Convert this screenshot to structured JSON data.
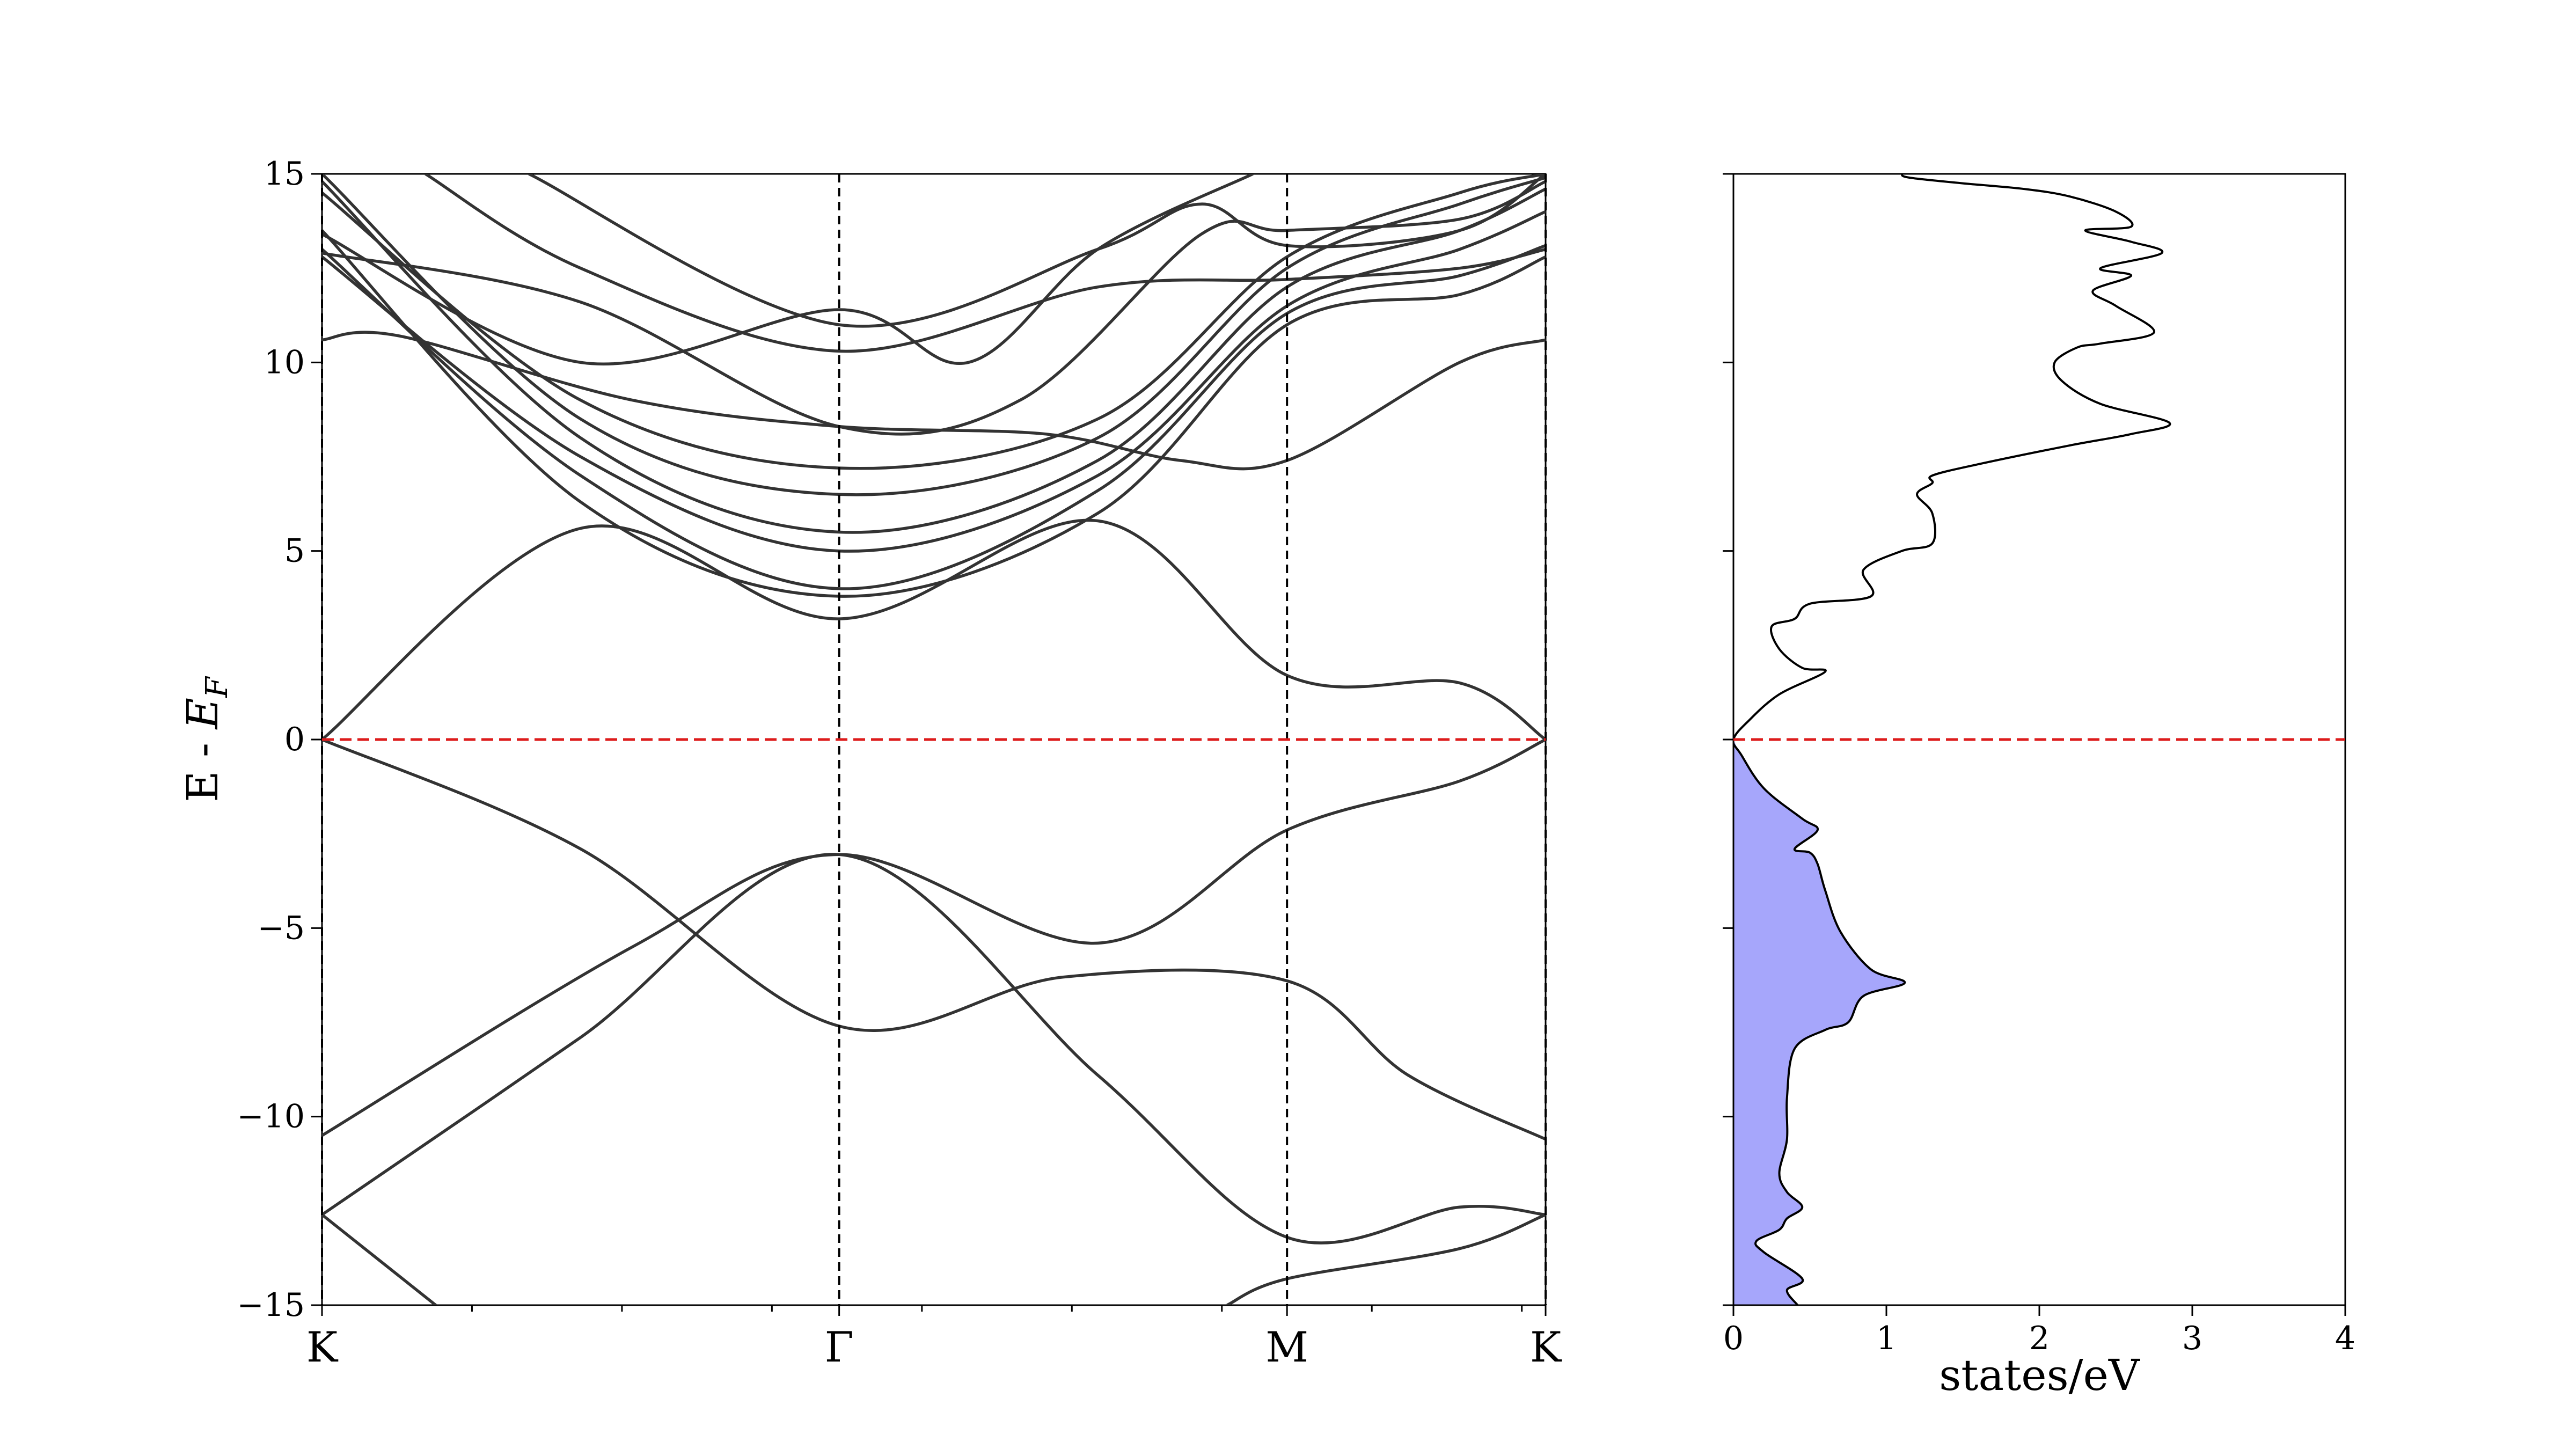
{
  "chart_data": [
    {
      "type": "line",
      "subtype": "band-structure",
      "title": "",
      "ylabel": "E - E_F",
      "ylabel_prefix": "E - ",
      "ylabel_symbol": "E",
      "ylabel_subscript": "F",
      "ylim": [
        -15,
        15
      ],
      "yticks": [
        15,
        10,
        5,
        0,
        -5,
        -10,
        -15
      ],
      "ytick_labels": [
        "15",
        "10",
        "5",
        "0",
        "−5",
        "−10",
        "−15"
      ],
      "kpath": [
        {
          "label": "K",
          "x": 0.0
        },
        {
          "label": "Γ",
          "x": 1.0
        },
        {
          "label": "M",
          "x": 1.866
        },
        {
          "label": "K",
          "x": 2.366
        }
      ],
      "xlim": [
        0.0,
        2.366
      ],
      "fermi_level": 0,
      "grid": false,
      "band_color": "#333333",
      "fermi_color": "#dd1c1c",
      "series": [
        {
          "points": [
            [
              0,
              0
            ],
            [
              0.5,
              -2.9
            ],
            [
              1.0,
              -7.6
            ],
            [
              1.433,
              -6.3
            ],
            [
              1.866,
              -6.4
            ],
            [
              2.1,
              -8.9
            ],
            [
              2.366,
              -10.6
            ]
          ]
        },
        {
          "points": [
            [
              0,
              -10.5
            ],
            [
              0.6,
              -5.5
            ],
            [
              1.0,
              -3.05
            ],
            [
              1.5,
              -5.4
            ],
            [
              1.866,
              -2.4
            ],
            [
              2.2,
              -1.1
            ],
            [
              2.366,
              0
            ]
          ]
        },
        {
          "points": [
            [
              0,
              -12.6
            ],
            [
              0.5,
              -7.9
            ],
            [
              1.0,
              -3.05
            ],
            [
              1.5,
              -8.9
            ],
            [
              1.866,
              -13.2
            ],
            [
              2.2,
              -12.4
            ],
            [
              2.366,
              -12.6
            ]
          ]
        },
        {
          "points": [
            [
              0,
              -12.6
            ],
            [
              0.22,
              -15
            ]
          ]
        },
        {
          "points": [
            [
              1.75,
              -15
            ],
            [
              1.866,
              -14.3
            ],
            [
              2.2,
              -13.5
            ],
            [
              2.366,
              -12.6
            ]
          ]
        },
        {
          "points": [
            [
              0,
              0
            ],
            [
              0.5,
              5.6
            ],
            [
              1.0,
              3.2
            ],
            [
              1.5,
              5.8
            ],
            [
              1.866,
              1.7
            ],
            [
              2.2,
              1.5
            ],
            [
              2.366,
              0
            ]
          ]
        },
        {
          "points": [
            [
              0,
              13.5
            ],
            [
              0.5,
              6.3
            ],
            [
              1.0,
              3.8
            ],
            [
              1.5,
              6.0
            ],
            [
              1.866,
              11.0
            ],
            [
              2.2,
              11.8
            ],
            [
              2.366,
              12.8
            ]
          ]
        },
        {
          "points": [
            [
              0,
              13.0
            ],
            [
              0.5,
              7.0
            ],
            [
              1.0,
              4.0
            ],
            [
              1.5,
              6.6
            ],
            [
              1.866,
              11.3
            ],
            [
              2.2,
              12.3
            ],
            [
              2.366,
              13.1
            ]
          ]
        },
        {
          "points": [
            [
              0,
              12.8
            ],
            [
              0.5,
              7.5
            ],
            [
              1.0,
              5.0
            ],
            [
              1.5,
              7.0
            ],
            [
              1.866,
              11.5
            ],
            [
              2.2,
              13.0
            ],
            [
              2.366,
              14.0
            ]
          ]
        },
        {
          "points": [
            [
              0,
              14.8
            ],
            [
              0.5,
              8.0
            ],
            [
              1.0,
              5.5
            ],
            [
              1.5,
              7.4
            ],
            [
              1.866,
              12.0
            ],
            [
              2.2,
              13.5
            ],
            [
              2.366,
              14.6
            ]
          ]
        },
        {
          "points": [
            [
              0,
              15.0
            ],
            [
              0.5,
              8.5
            ],
            [
              1.0,
              6.5
            ],
            [
              1.5,
              8.0
            ],
            [
              1.866,
              12.5
            ],
            [
              2.2,
              14.2
            ],
            [
              2.366,
              14.9
            ]
          ]
        },
        {
          "points": [
            [
              0,
              14.5
            ],
            [
              0.5,
              9.0
            ],
            [
              1.0,
              7.2
            ],
            [
              1.5,
              8.5
            ],
            [
              1.866,
              12.8
            ],
            [
              2.2,
              14.5
            ],
            [
              2.366,
              15.0
            ]
          ]
        },
        {
          "points": [
            [
              0,
              10.6
            ],
            [
              0.15,
              10.7
            ],
            [
              0.6,
              9.0
            ],
            [
              1.0,
              8.3
            ],
            [
              1.4,
              8.1
            ],
            [
              1.66,
              7.4
            ],
            [
              1.866,
              7.4
            ],
            [
              2.2,
              10.0
            ],
            [
              2.366,
              10.6
            ]
          ]
        },
        {
          "points": [
            [
              0,
              12.9
            ],
            [
              0.5,
              11.6
            ],
            [
              1.0,
              8.3
            ],
            [
              1.35,
              9.0
            ],
            [
              1.7,
              13.4
            ],
            [
              1.866,
              13.5
            ],
            [
              2.2,
              13.8
            ],
            [
              2.366,
              14.8
            ]
          ]
        },
        {
          "points": [
            [
              0,
              13.4
            ],
            [
              0.5,
              10.0
            ],
            [
              1.0,
              11.4
            ],
            [
              1.25,
              10.0
            ],
            [
              1.5,
              13.0
            ],
            [
              1.8,
              15.0
            ]
          ]
        },
        {
          "points": [
            [
              0.4,
              15
            ],
            [
              1.0,
              11.0
            ],
            [
              1.5,
              13.0
            ],
            [
              1.7,
              14.2
            ],
            [
              1.866,
              13.1
            ],
            [
              2.2,
              13.5
            ],
            [
              2.366,
              15.0
            ]
          ]
        },
        {
          "points": [
            [
              0.2,
              15
            ],
            [
              0.5,
              12.5
            ],
            [
              1.0,
              10.3
            ],
            [
              1.5,
              12.0
            ],
            [
              1.866,
              12.2
            ],
            [
              2.2,
              12.5
            ],
            [
              2.366,
              13.0
            ]
          ]
        }
      ]
    },
    {
      "type": "area",
      "subtype": "density-of-states",
      "title": "",
      "xlabel": "states/eV",
      "xlim": [
        0,
        4
      ],
      "xticks": [
        0,
        1,
        2,
        3,
        4
      ],
      "xtick_labels": [
        "0",
        "1",
        "2",
        "3",
        "4"
      ],
      "ylim": [
        -15,
        15
      ],
      "fermi_level": 0,
      "grid": false,
      "line_color": "#000000",
      "fill_color": "#a6a6fb",
      "fill_below_fermi": true,
      "points": [
        [
          0.42,
          -15
        ],
        [
          0.35,
          -14.6
        ],
        [
          0.45,
          -14.3
        ],
        [
          0.2,
          -13.6
        ],
        [
          0.15,
          -13.3
        ],
        [
          0.3,
          -13.0
        ],
        [
          0.35,
          -12.7
        ],
        [
          0.45,
          -12.4
        ],
        [
          0.35,
          -12.0
        ],
        [
          0.3,
          -11.5
        ],
        [
          0.35,
          -10.6
        ],
        [
          0.35,
          -9.5
        ],
        [
          0.4,
          -8.2
        ],
        [
          0.6,
          -7.7
        ],
        [
          0.75,
          -7.5
        ],
        [
          0.85,
          -6.8
        ],
        [
          1.12,
          -6.45
        ],
        [
          0.9,
          -6.1
        ],
        [
          0.7,
          -5.1
        ],
        [
          0.6,
          -4.0
        ],
        [
          0.55,
          -3.3
        ],
        [
          0.5,
          -3.0
        ],
        [
          0.4,
          -2.9
        ],
        [
          0.55,
          -2.4
        ],
        [
          0.45,
          -2.1
        ],
        [
          0.2,
          -1.3
        ],
        [
          0.05,
          -0.4
        ],
        [
          0.0,
          0.0
        ],
        [
          0.1,
          0.5
        ],
        [
          0.3,
          1.2
        ],
        [
          0.6,
          1.8
        ],
        [
          0.45,
          1.9
        ],
        [
          0.3,
          2.4
        ],
        [
          0.25,
          3.0
        ],
        [
          0.4,
          3.2
        ],
        [
          0.5,
          3.6
        ],
        [
          0.9,
          3.8
        ],
        [
          0.85,
          4.5
        ],
        [
          1.1,
          5.0
        ],
        [
          1.3,
          5.2
        ],
        [
          1.3,
          6.0
        ],
        [
          1.2,
          6.5
        ],
        [
          1.3,
          6.8
        ],
        [
          1.3,
          7.0
        ],
        [
          1.6,
          7.3
        ],
        [
          2.2,
          7.8
        ],
        [
          2.6,
          8.1
        ],
        [
          2.85,
          8.4
        ],
        [
          2.4,
          8.9
        ],
        [
          2.15,
          9.5
        ],
        [
          2.1,
          10.0
        ],
        [
          2.25,
          10.4
        ],
        [
          2.4,
          10.5
        ],
        [
          2.75,
          10.8
        ],
        [
          2.5,
          11.5
        ],
        [
          2.35,
          11.9
        ],
        [
          2.6,
          12.3
        ],
        [
          2.4,
          12.5
        ],
        [
          2.8,
          12.9
        ],
        [
          2.6,
          13.2
        ],
        [
          2.3,
          13.5
        ],
        [
          2.6,
          13.6
        ],
        [
          2.5,
          14.0
        ],
        [
          2.2,
          14.4
        ],
        [
          1.9,
          14.6
        ],
        [
          1.5,
          14.75
        ],
        [
          1.15,
          14.9
        ],
        [
          1.1,
          15
        ]
      ]
    }
  ]
}
